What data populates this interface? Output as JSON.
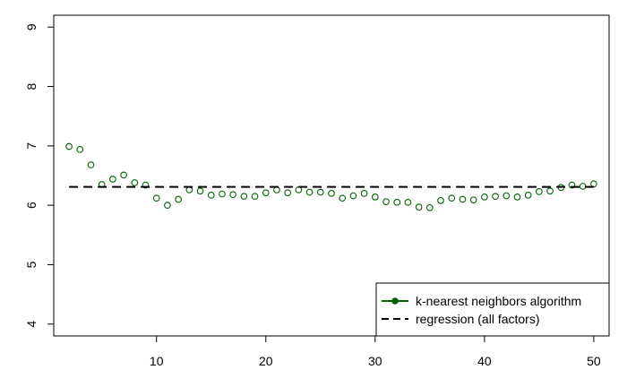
{
  "chart_data": {
    "type": "scatter",
    "title": "",
    "xlabel": "",
    "ylabel": "",
    "xlim": [
      0.6,
      51.4
    ],
    "ylim": [
      3.8,
      9.2
    ],
    "x_ticks": [
      10,
      20,
      30,
      40,
      50
    ],
    "y_ticks": [
      4,
      5,
      6,
      7,
      8,
      9
    ],
    "grid": false,
    "legend_position": "bottom-right",
    "series": [
      {
        "name": "k-nearest neighbors algorithm",
        "style": "points",
        "color": "#006400",
        "x": [
          2,
          3,
          4,
          5,
          6,
          7,
          8,
          9,
          10,
          11,
          12,
          13,
          14,
          15,
          16,
          17,
          18,
          19,
          20,
          21,
          22,
          23,
          24,
          25,
          26,
          27,
          28,
          29,
          30,
          31,
          32,
          33,
          34,
          35,
          36,
          37,
          38,
          39,
          40,
          41,
          42,
          43,
          44,
          45,
          46,
          47,
          48,
          49,
          50
        ],
        "y": [
          6.99,
          6.94,
          6.68,
          6.35,
          6.44,
          6.51,
          6.38,
          6.34,
          6.12,
          6.0,
          6.1,
          6.26,
          6.24,
          6.17,
          6.19,
          6.18,
          6.15,
          6.15,
          6.21,
          6.26,
          6.21,
          6.26,
          6.22,
          6.22,
          6.2,
          6.12,
          6.16,
          6.2,
          6.14,
          6.06,
          6.05,
          6.05,
          5.97,
          5.96,
          6.08,
          6.12,
          6.1,
          6.09,
          6.14,
          6.15,
          6.16,
          6.14,
          6.17,
          6.23,
          6.24,
          6.3,
          6.34,
          6.32,
          6.36
        ]
      },
      {
        "name": "regression (all factors)",
        "style": "dashed-line",
        "color": "#000000",
        "x": [
          2,
          50
        ],
        "y": [
          6.31,
          6.31
        ]
      }
    ]
  }
}
